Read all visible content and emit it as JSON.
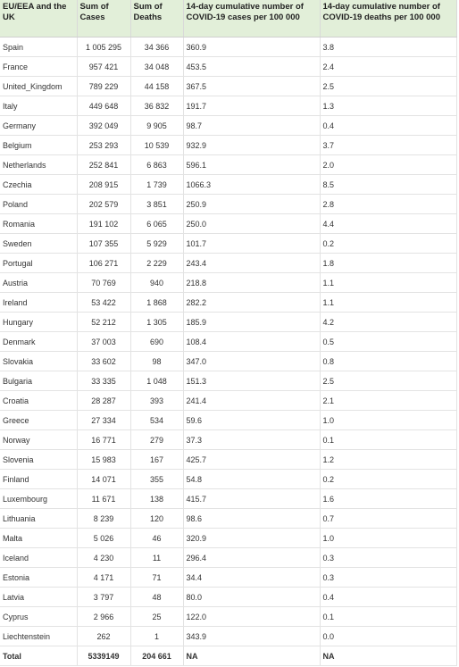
{
  "table": {
    "headers": [
      "EU/EEA and the UK",
      "Sum of Cases",
      "Sum of Deaths",
      "14-day cumulative number of COVID-19 cases per 100 000",
      "14-day cumulative number of COVID-19 deaths per 100 000"
    ],
    "rows": [
      [
        "Spain",
        "1 005 295",
        "34 366",
        "360.9",
        "3.8"
      ],
      [
        "France",
        "957 421",
        "34 048",
        "453.5",
        "2.4"
      ],
      [
        "United_Kingdom",
        "789 229",
        "44 158",
        "367.5",
        "2.5"
      ],
      [
        "Italy",
        "449 648",
        "36 832",
        "191.7",
        "1.3"
      ],
      [
        "Germany",
        "392 049",
        "9 905",
        "98.7",
        "0.4"
      ],
      [
        "Belgium",
        "253 293",
        "10 539",
        "932.9",
        "3.7"
      ],
      [
        "Netherlands",
        "252 841",
        "6 863",
        "596.1",
        "2.0"
      ],
      [
        "Czechia",
        "208 915",
        "1 739",
        "1066.3",
        "8.5"
      ],
      [
        "Poland",
        "202 579",
        "3 851",
        "250.9",
        "2.8"
      ],
      [
        "Romania",
        "191 102",
        "6 065",
        "250.0",
        "4.4"
      ],
      [
        "Sweden",
        "107 355",
        "5 929",
        "101.7",
        "0.2"
      ],
      [
        "Portugal",
        "106 271",
        "2 229",
        "243.4",
        "1.8"
      ],
      [
        "Austria",
        "70 769",
        "940",
        "218.8",
        "1.1"
      ],
      [
        "Ireland",
        "53 422",
        "1 868",
        "282.2",
        "1.1"
      ],
      [
        "Hungary",
        "52 212",
        "1 305",
        "185.9",
        "4.2"
      ],
      [
        "Denmark",
        "37 003",
        "690",
        "108.4",
        "0.5"
      ],
      [
        "Slovakia",
        "33 602",
        "98",
        "347.0",
        "0.8"
      ],
      [
        "Bulgaria",
        "33 335",
        "1 048",
        "151.3",
        "2.5"
      ],
      [
        "Croatia",
        "28 287",
        "393",
        "241.4",
        "2.1"
      ],
      [
        "Greece",
        "27 334",
        "534",
        "59.6",
        "1.0"
      ],
      [
        "Norway",
        "16 771",
        "279",
        "37.3",
        "0.1"
      ],
      [
        "Slovenia",
        "15 983",
        "167",
        "425.7",
        "1.2"
      ],
      [
        "Finland",
        "14 071",
        "355",
        "54.8",
        "0.2"
      ],
      [
        "Luxembourg",
        "11 671",
        "138",
        "415.7",
        "1.6"
      ],
      [
        "Lithuania",
        "8 239",
        "120",
        "98.6",
        "0.7"
      ],
      [
        "Malta",
        "5 026",
        "46",
        "320.9",
        "1.0"
      ],
      [
        "Iceland",
        "4 230",
        "11",
        "296.4",
        "0.3"
      ],
      [
        "Estonia",
        "4 171",
        "71",
        "34.4",
        "0.3"
      ],
      [
        "Latvia",
        "3 797",
        "48",
        "80.0",
        "0.4"
      ],
      [
        "Cyprus",
        "2 966",
        "25",
        "122.0",
        "0.1"
      ],
      [
        "Liechtenstein",
        "262",
        "1",
        "343.9",
        "0.0"
      ]
    ],
    "total": [
      "Total",
      "5339149",
      "204 661",
      "NA",
      "NA"
    ]
  }
}
